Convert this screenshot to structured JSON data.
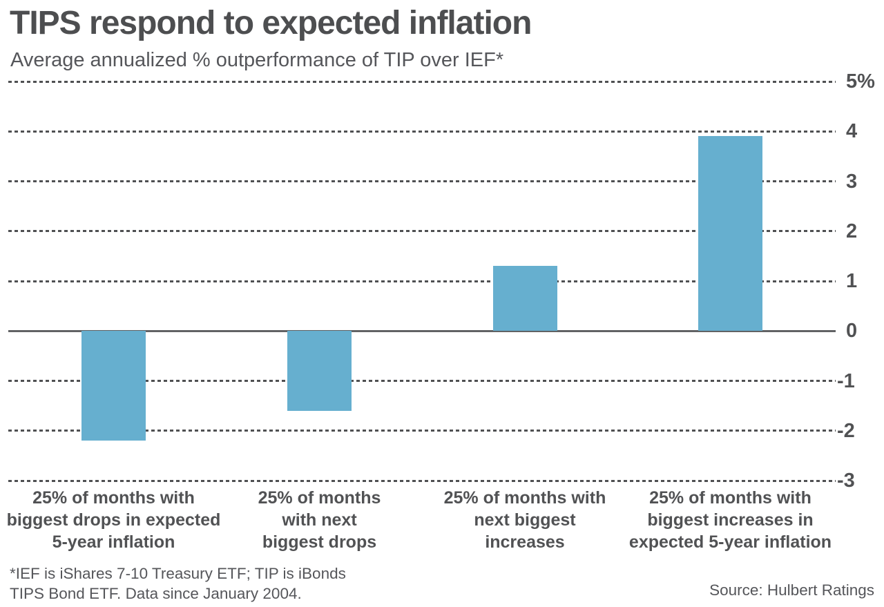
{
  "chart_data": {
    "type": "bar",
    "title": "TIPS respond to expected inflation",
    "subtitle": "Average annualized % outperformance of TIP over IEF*",
    "categories": [
      "25% of months with\nbiggest drops in expected\n5-year inflation",
      "25% of months\nwith next\nbiggest drops",
      "25% of months with\nnext biggest\nincreases",
      "25% of months with\nbiggest increases in\nexpected 5-year inflation"
    ],
    "values": [
      -2.2,
      -1.6,
      1.3,
      3.9
    ],
    "xlabel": "",
    "ylabel": "",
    "ylim": [
      -3,
      5
    ],
    "yticks": [
      5,
      4,
      3,
      2,
      1,
      0,
      -1,
      -2,
      -3
    ],
    "ytick_labels": [
      "5%",
      "4",
      "3",
      "2",
      "1",
      "0",
      "-1",
      "-2",
      "-3"
    ],
    "bar_color": "#66AFCF",
    "grid": "horizontal-dotted",
    "legend": "none"
  },
  "footer": {
    "footnote": "*IEF is iShares 7-10 Treasury ETF; TIP is iBonds\nTIPS Bond ETF. Data since January 2004.",
    "source": "Source: Hulbert Ratings"
  }
}
